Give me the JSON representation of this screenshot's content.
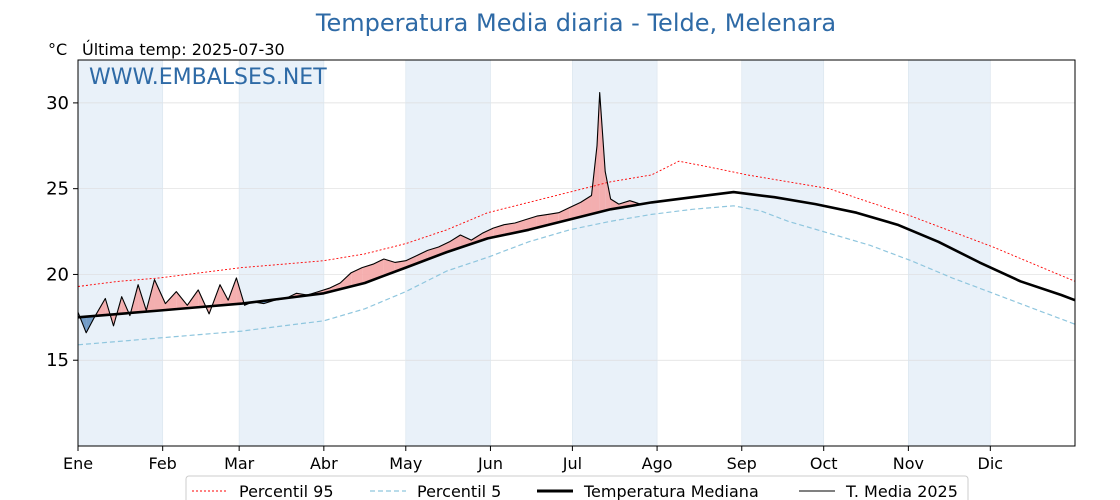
{
  "chart_data": {
    "type": "line",
    "title": "Temperatura Media diaria - Telde, Melenara",
    "unit_label": "°C",
    "subtitle": "Última temp: 2025-07-30",
    "watermark": "WWW.EMBALSES.NET",
    "months": [
      "Ene",
      "Feb",
      "Mar",
      "Abr",
      "May",
      "Jun",
      "Jul",
      "Ago",
      "Sep",
      "Oct",
      "Nov",
      "Dic"
    ],
    "ylim": [
      10,
      32.5
    ],
    "yticks": [
      15,
      20,
      25,
      30
    ],
    "grid": true,
    "legend_position": "bottom",
    "legend": [
      "Percentil 95",
      "Percentil 5",
      "Temperatura Mediana",
      "T. Media 2025"
    ],
    "colors": {
      "p95": "#ff0000",
      "p5": "#8fc6de",
      "median": "#000000",
      "t2025": "#000000",
      "above_fill": "#f4a6a6",
      "below_fill": "#4a7fb5",
      "shade": "#e9f1f9",
      "title": "#2e6aa6"
    },
    "series": [
      {
        "name": "Percentil 95",
        "key": "p95",
        "style": "dotted",
        "points": [
          [
            0,
            19.3
          ],
          [
            15,
            19.6
          ],
          [
            30,
            19.8
          ],
          [
            45,
            20.1
          ],
          [
            60,
            20.4
          ],
          [
            75,
            20.6
          ],
          [
            90,
            20.8
          ],
          [
            105,
            21.2
          ],
          [
            120,
            21.8
          ],
          [
            135,
            22.6
          ],
          [
            150,
            23.6
          ],
          [
            165,
            24.2
          ],
          [
            180,
            24.8
          ],
          [
            195,
            25.4
          ],
          [
            210,
            25.8
          ],
          [
            220,
            26.6
          ],
          [
            230,
            26.3
          ],
          [
            245,
            25.8
          ],
          [
            260,
            25.4
          ],
          [
            275,
            25.0
          ],
          [
            290,
            24.2
          ],
          [
            305,
            23.4
          ],
          [
            320,
            22.5
          ],
          [
            335,
            21.6
          ],
          [
            350,
            20.6
          ],
          [
            365,
            19.6
          ]
        ]
      },
      {
        "name": "Percentil 5",
        "key": "p5",
        "style": "dashed",
        "points": [
          [
            0,
            15.9
          ],
          [
            15,
            16.1
          ],
          [
            30,
            16.3
          ],
          [
            45,
            16.5
          ],
          [
            60,
            16.7
          ],
          [
            75,
            17.0
          ],
          [
            90,
            17.3
          ],
          [
            105,
            18.0
          ],
          [
            120,
            19.0
          ],
          [
            135,
            20.2
          ],
          [
            150,
            21.0
          ],
          [
            165,
            21.9
          ],
          [
            180,
            22.6
          ],
          [
            195,
            23.1
          ],
          [
            210,
            23.5
          ],
          [
            225,
            23.8
          ],
          [
            240,
            24.0
          ],
          [
            250,
            23.7
          ],
          [
            260,
            23.1
          ],
          [
            275,
            22.4
          ],
          [
            290,
            21.7
          ],
          [
            305,
            20.8
          ],
          [
            320,
            19.8
          ],
          [
            335,
            18.9
          ],
          [
            350,
            18.0
          ],
          [
            365,
            17.1
          ]
        ]
      },
      {
        "name": "Temperatura Mediana",
        "key": "median",
        "style": "thick",
        "points": [
          [
            0,
            17.5
          ],
          [
            15,
            17.7
          ],
          [
            30,
            17.9
          ],
          [
            45,
            18.1
          ],
          [
            60,
            18.3
          ],
          [
            75,
            18.6
          ],
          [
            90,
            18.9
          ],
          [
            105,
            19.5
          ],
          [
            120,
            20.4
          ],
          [
            135,
            21.3
          ],
          [
            150,
            22.1
          ],
          [
            165,
            22.6
          ],
          [
            180,
            23.2
          ],
          [
            195,
            23.8
          ],
          [
            210,
            24.2
          ],
          [
            225,
            24.5
          ],
          [
            240,
            24.8
          ],
          [
            255,
            24.5
          ],
          [
            270,
            24.1
          ],
          [
            285,
            23.6
          ],
          [
            300,
            22.9
          ],
          [
            315,
            21.9
          ],
          [
            330,
            20.7
          ],
          [
            345,
            19.6
          ],
          [
            360,
            18.8
          ],
          [
            365,
            18.5
          ]
        ]
      },
      {
        "name": "T. Media 2025",
        "key": "t2025",
        "style": "thin",
        "points": [
          [
            0,
            17.8
          ],
          [
            3,
            16.6
          ],
          [
            6,
            17.5
          ],
          [
            10,
            18.6
          ],
          [
            13,
            17.0
          ],
          [
            16,
            18.7
          ],
          [
            19,
            17.6
          ],
          [
            22,
            19.4
          ],
          [
            25,
            17.9
          ],
          [
            28,
            19.7
          ],
          [
            32,
            18.3
          ],
          [
            36,
            19.0
          ],
          [
            40,
            18.2
          ],
          [
            44,
            19.1
          ],
          [
            48,
            17.7
          ],
          [
            52,
            19.4
          ],
          [
            55,
            18.5
          ],
          [
            58,
            19.8
          ],
          [
            61,
            18.2
          ],
          [
            64,
            18.4
          ],
          [
            68,
            18.3
          ],
          [
            72,
            18.5
          ],
          [
            76,
            18.6
          ],
          [
            80,
            18.9
          ],
          [
            84,
            18.8
          ],
          [
            88,
            19.0
          ],
          [
            92,
            19.2
          ],
          [
            96,
            19.5
          ],
          [
            100,
            20.1
          ],
          [
            104,
            20.4
          ],
          [
            108,
            20.6
          ],
          [
            112,
            20.9
          ],
          [
            116,
            20.7
          ],
          [
            120,
            20.8
          ],
          [
            124,
            21.1
          ],
          [
            128,
            21.4
          ],
          [
            132,
            21.6
          ],
          [
            136,
            21.9
          ],
          [
            140,
            22.3
          ],
          [
            144,
            22.0
          ],
          [
            148,
            22.4
          ],
          [
            152,
            22.7
          ],
          [
            156,
            22.9
          ],
          [
            160,
            23.0
          ],
          [
            164,
            23.2
          ],
          [
            168,
            23.4
          ],
          [
            172,
            23.5
          ],
          [
            176,
            23.6
          ],
          [
            180,
            23.9
          ],
          [
            184,
            24.2
          ],
          [
            188,
            24.6
          ],
          [
            190,
            27.5
          ],
          [
            191,
            30.6
          ],
          [
            193,
            26.0
          ],
          [
            195,
            24.4
          ],
          [
            198,
            24.1
          ],
          [
            202,
            24.3
          ],
          [
            206,
            24.1
          ],
          [
            210,
            24.2
          ]
        ]
      }
    ],
    "x_domain": [
      0,
      365
    ],
    "month_starts": [
      0,
      31,
      59,
      90,
      120,
      151,
      181,
      212,
      243,
      273,
      304,
      334
    ]
  }
}
